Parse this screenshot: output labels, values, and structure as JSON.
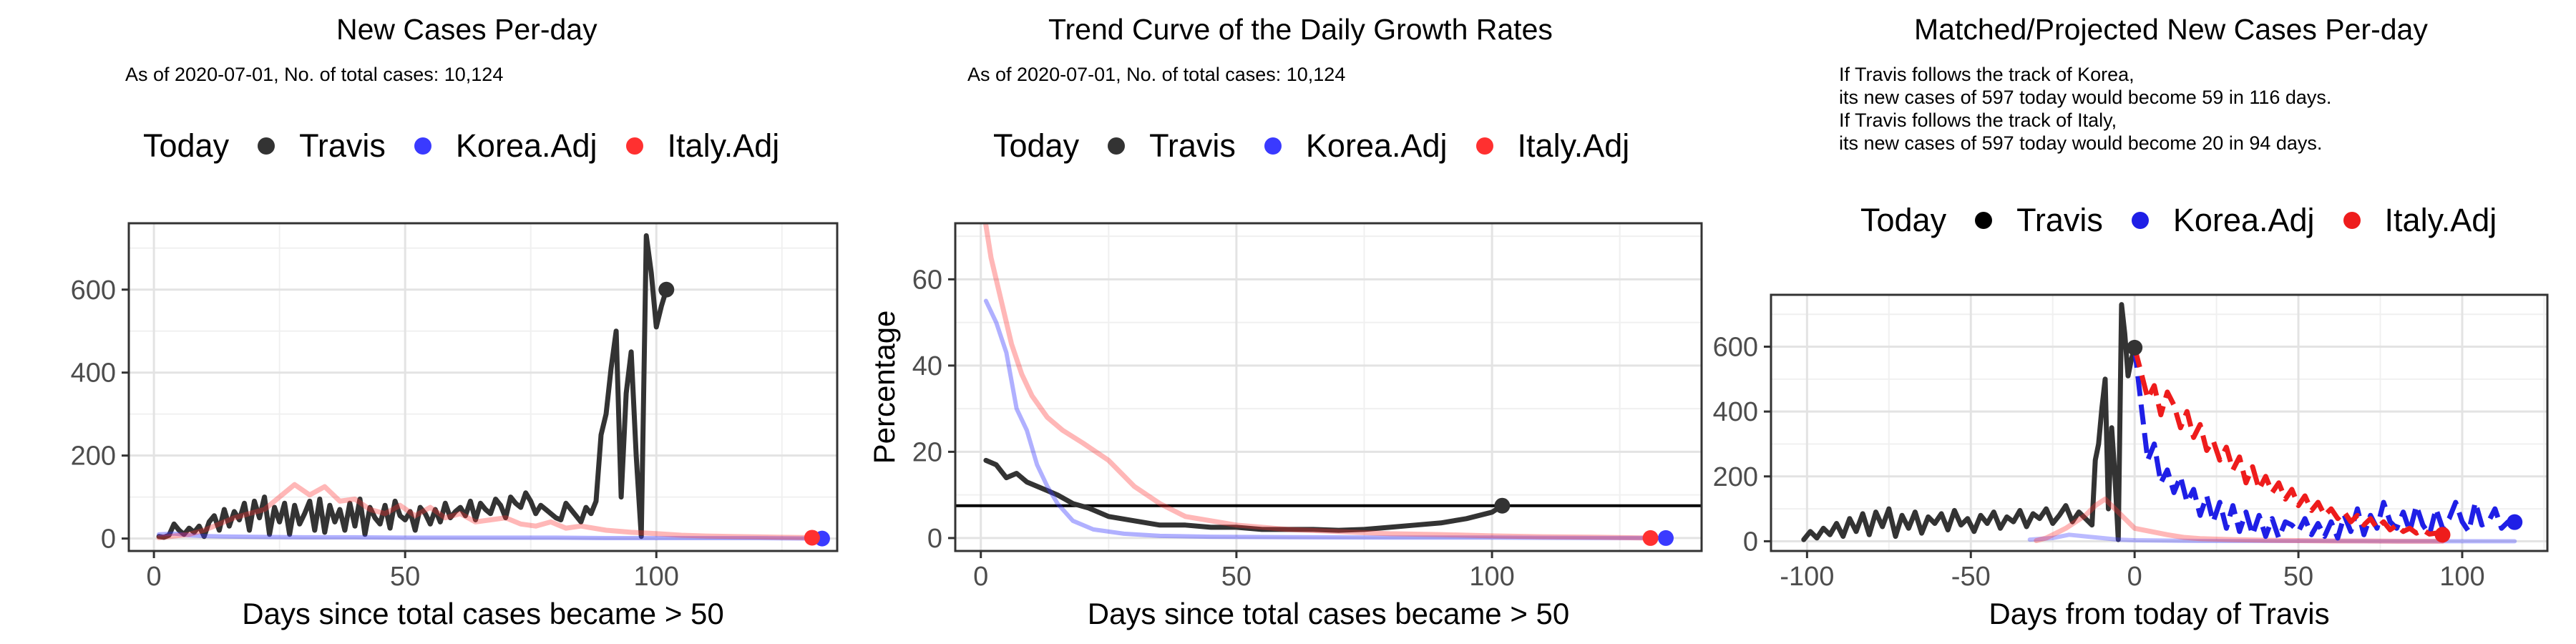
{
  "chart_data": [
    {
      "type": "line",
      "title": "New Cases Per-day",
      "subtitle": [
        "As of 2020-07-01, No. of total cases: 10,124"
      ],
      "xlabel": "Days since total cases became > 50",
      "ylabel": "",
      "xlim": [
        -5,
        136
      ],
      "ylim": [
        -30,
        760
      ],
      "xticks": [
        0,
        50,
        100
      ],
      "yticks": [
        0,
        200,
        400,
        600
      ],
      "grid": true,
      "legend": {
        "position": "top",
        "title": "Today",
        "entries": [
          "Travis",
          "Korea.Adj",
          "Italy.Adj"
        ]
      },
      "series": [
        {
          "name": "Travis",
          "color": "#333333",
          "alpha": 1,
          "width": 7,
          "x": [
            1,
            2,
            3,
            4,
            5,
            6,
            7,
            8,
            9,
            10,
            11,
            12,
            13,
            14,
            15,
            16,
            17,
            18,
            19,
            20,
            21,
            22,
            23,
            24,
            25,
            26,
            27,
            28,
            29,
            30,
            31,
            32,
            33,
            34,
            35,
            36,
            37,
            38,
            39,
            40,
            41,
            42,
            43,
            44,
            45,
            46,
            47,
            48,
            49,
            50,
            51,
            52,
            53,
            54,
            55,
            56,
            57,
            58,
            59,
            60,
            61,
            62,
            63,
            64,
            65,
            66,
            67,
            68,
            69,
            70,
            71,
            72,
            73,
            74,
            75,
            76,
            77,
            78,
            79,
            80,
            81,
            82,
            83,
            84,
            85,
            86,
            87,
            88,
            89,
            90,
            91,
            92,
            93,
            94,
            95,
            96,
            97,
            98,
            99,
            100,
            101,
            102
          ],
          "y": [
            5,
            3,
            8,
            35,
            20,
            10,
            25,
            15,
            30,
            5,
            40,
            55,
            20,
            70,
            30,
            65,
            45,
            85,
            20,
            90,
            50,
            100,
            10,
            75,
            40,
            85,
            10,
            80,
            35,
            60,
            90,
            20,
            95,
            15,
            80,
            40,
            70,
            20,
            85,
            30,
            95,
            10,
            75,
            50,
            35,
            80,
            25,
            90,
            55,
            45,
            65,
            20,
            75,
            60,
            35,
            70,
            40,
            85,
            50,
            65,
            75,
            55,
            90,
            45,
            85,
            70,
            60,
            95,
            80,
            50,
            100,
            85,
            75,
            110,
            90,
            60,
            80,
            70,
            60,
            50,
            45,
            85,
            70,
            55,
            40,
            75,
            60,
            90,
            250,
            300,
            410,
            500,
            100,
            350,
            450,
            200,
            5,
            730,
            640,
            510,
            560,
            600
          ],
          "end_marker": true
        },
        {
          "name": "Korea.Adj",
          "color": "#3a3aff",
          "alpha": 0.4,
          "width": 6,
          "x": [
            1,
            4,
            7,
            10,
            14,
            20,
            30,
            40,
            50,
            60,
            70,
            80,
            90,
            100,
            110,
            120,
            133
          ],
          "y": [
            10,
            12,
            8,
            6,
            5,
            4,
            3,
            3,
            2,
            2,
            2,
            2,
            1,
            1,
            1,
            1,
            0
          ],
          "end_marker": true
        },
        {
          "name": "Italy.Adj",
          "color": "#ff3030",
          "alpha": 0.35,
          "width": 7,
          "x": [
            1,
            4,
            7,
            10,
            13,
            16,
            19,
            22,
            25,
            28,
            31,
            34,
            37,
            40,
            43,
            46,
            49,
            52,
            55,
            58,
            61,
            64,
            67,
            70,
            73,
            76,
            79,
            82,
            85,
            90,
            95,
            100,
            105,
            110,
            115,
            120,
            125,
            131
          ],
          "y": [
            2,
            6,
            10,
            20,
            35,
            50,
            60,
            70,
            100,
            130,
            105,
            125,
            90,
            95,
            70,
            60,
            80,
            55,
            75,
            50,
            60,
            40,
            45,
            50,
            35,
            30,
            40,
            25,
            30,
            20,
            15,
            12,
            8,
            6,
            5,
            4,
            3,
            2
          ],
          "end_marker": true
        }
      ]
    },
    {
      "type": "line",
      "title": "Trend Curve of the Daily Growth Rates",
      "subtitle": [
        "As of 2020-07-01, No. of total cases: 10,124"
      ],
      "xlabel": "Days since total cases became > 50",
      "ylabel": "Percentage",
      "xlim": [
        -5,
        141
      ],
      "ylim": [
        -3,
        73
      ],
      "xticks": [
        0,
        50,
        100
      ],
      "yticks": [
        0,
        20,
        40,
        60
      ],
      "grid": true,
      "hline": 7.5,
      "legend": {
        "position": "top",
        "title": "Today",
        "entries": [
          "Travis",
          "Korea.Adj",
          "Italy.Adj"
        ]
      },
      "series": [
        {
          "name": "Travis",
          "color": "#333333",
          "alpha": 1,
          "width": 7,
          "x": [
            1,
            3,
            5,
            7,
            9,
            11,
            13,
            15,
            18,
            21,
            25,
            30,
            35,
            40,
            45,
            50,
            55,
            60,
            65,
            70,
            75,
            80,
            85,
            90,
            95,
            100,
            102
          ],
          "y": [
            18,
            17,
            14,
            15,
            13,
            12,
            11,
            10,
            8,
            7,
            5,
            4,
            3,
            3,
            2.5,
            2.5,
            2,
            2,
            2,
            1.8,
            2,
            2.5,
            3,
            3.5,
            4.5,
            6,
            7.5
          ],
          "end_marker": true
        },
        {
          "name": "Korea.Adj",
          "color": "#3a3aff",
          "alpha": 0.4,
          "width": 6,
          "x": [
            1,
            3,
            5,
            7,
            9,
            11,
            13,
            15,
            18,
            22,
            28,
            35,
            45,
            60,
            80,
            100,
            120,
            134
          ],
          "y": [
            55,
            50,
            43,
            30,
            25,
            17,
            12,
            8,
            4,
            2,
            1,
            0.5,
            0.3,
            0.2,
            0.1,
            0.1,
            0,
            0
          ],
          "end_marker": true
        },
        {
          "name": "Italy.Adj",
          "color": "#ff3030",
          "alpha": 0.35,
          "width": 7,
          "x": [
            0,
            2,
            4,
            6,
            8,
            10,
            13,
            16,
            20,
            25,
            30,
            35,
            40,
            45,
            50,
            60,
            70,
            80,
            90,
            100,
            110,
            120,
            131
          ],
          "y": [
            80,
            65,
            55,
            45,
            38,
            33,
            28,
            25,
            22,
            18,
            12,
            8,
            5,
            4,
            3,
            2,
            1.5,
            1,
            0.8,
            0.5,
            0.3,
            0.2,
            0
          ],
          "end_marker": true
        }
      ]
    },
    {
      "type": "line",
      "title": "Matched/Projected New Cases Per-day",
      "subtitle": [
        "If Travis follows the track of Korea,",
        "its new cases of 597 today would become 59 in 116 days.",
        "If Travis follows the track of Italy,",
        "its new cases of 597 today would become 20 in 94 days."
      ],
      "xlabel": "Days from today of Travis",
      "ylabel": "",
      "xlim": [
        -111,
        126
      ],
      "ylim": [
        -30,
        760
      ],
      "xticks": [
        -100,
        -50,
        0,
        50,
        100
      ],
      "yticks": [
        0,
        200,
        400,
        600
      ],
      "grid": true,
      "legend": {
        "position": "top",
        "title": "Today",
        "entries": [
          "Travis",
          "Korea.Adj",
          "Italy.Adj"
        ]
      },
      "series": [
        {
          "name": "Travis",
          "color": "#333333",
          "alpha": 1,
          "width": 7,
          "x": [
            -101,
            -99,
            -97,
            -95,
            -93,
            -91,
            -89,
            -87,
            -85,
            -83,
            -81,
            -79,
            -77,
            -75,
            -73,
            -71,
            -69,
            -67,
            -65,
            -63,
            -61,
            -59,
            -57,
            -55,
            -53,
            -51,
            -49,
            -47,
            -45,
            -43,
            -41,
            -39,
            -37,
            -35,
            -33,
            -31,
            -29,
            -27,
            -25,
            -23,
            -21,
            -19,
            -17,
            -15,
            -13,
            -12,
            -11,
            -10,
            -9,
            -8,
            -7,
            -6,
            -5,
            -4,
            -3,
            -2,
            -1,
            0
          ],
          "y": [
            5,
            30,
            10,
            40,
            20,
            55,
            15,
            70,
            30,
            85,
            20,
            90,
            45,
            100,
            15,
            80,
            40,
            90,
            25,
            75,
            55,
            85,
            35,
            95,
            50,
            70,
            30,
            80,
            55,
            90,
            40,
            75,
            60,
            95,
            45,
            85,
            70,
            100,
            55,
            80,
            110,
            60,
            90,
            70,
            50,
            250,
            300,
            410,
            500,
            100,
            350,
            200,
            5,
            730,
            640,
            510,
            560,
            597
          ],
          "end_marker": true
        },
        {
          "name": "Korea.Adj",
          "color": "#3a3aff",
          "alpha": 0.35,
          "width": 6,
          "x": [
            -32,
            -25,
            -20,
            -15,
            -10,
            -5,
            0,
            10,
            20,
            40,
            60,
            80,
            100,
            116
          ],
          "y": [
            5,
            10,
            20,
            15,
            10,
            5,
            3,
            2,
            1,
            1,
            1,
            0,
            0,
            0
          ],
          "end_marker": false
        },
        {
          "name": "Italy.Adj",
          "color": "#ff3030",
          "alpha": 0.35,
          "width": 7,
          "x": [
            -30,
            -27,
            -24,
            -21,
            -18,
            -15,
            -12,
            -9,
            -6,
            -3,
            0,
            5,
            10,
            15,
            20,
            30,
            40,
            50,
            60,
            70,
            80,
            90,
            94
          ],
          "y": [
            2,
            10,
            25,
            40,
            60,
            80,
            110,
            130,
            100,
            70,
            40,
            30,
            20,
            12,
            8,
            5,
            3,
            2,
            1,
            1,
            0,
            0,
            0
          ],
          "end_marker": false
        },
        {
          "name": "Korea.Adj",
          "color": "#1f1fe6",
          "alpha": 1,
          "width": 7,
          "dash": "28,12",
          "x": [
            0,
            2,
            4,
            6,
            8,
            10,
            12,
            14,
            16,
            18,
            20,
            22,
            24,
            26,
            28,
            30,
            32,
            34,
            36,
            38,
            40,
            42,
            44,
            46,
            48,
            50,
            52,
            54,
            56,
            58,
            60,
            62,
            64,
            66,
            68,
            70,
            72,
            74,
            76,
            78,
            80,
            82,
            84,
            86,
            88,
            90,
            92,
            94,
            96,
            98,
            100,
            102,
            104,
            106,
            108,
            110,
            112,
            114,
            116
          ],
          "y": [
            597,
            420,
            250,
            300,
            180,
            220,
            150,
            200,
            120,
            160,
            80,
            140,
            60,
            120,
            40,
            110,
            30,
            90,
            20,
            80,
            15,
            70,
            10,
            60,
            50,
            30,
            70,
            20,
            55,
            15,
            60,
            10,
            80,
            30,
            100,
            20,
            80,
            40,
            120,
            60,
            40,
            90,
            30,
            110,
            50,
            20,
            100,
            40,
            70,
            120,
            60,
            30,
            120,
            50,
            60,
            100,
            40,
            60,
            59
          ],
          "end_marker": true
        },
        {
          "name": "Italy.Adj",
          "color": "#ee1c1c",
          "alpha": 1,
          "width": 7,
          "dash": "28,12",
          "x": [
            0,
            2,
            4,
            6,
            8,
            10,
            12,
            14,
            16,
            18,
            20,
            22,
            24,
            26,
            28,
            30,
            32,
            34,
            36,
            38,
            40,
            42,
            44,
            46,
            48,
            50,
            52,
            54,
            56,
            58,
            60,
            62,
            64,
            66,
            68,
            70,
            72,
            74,
            76,
            78,
            80,
            82,
            84,
            86,
            88,
            90,
            92,
            94
          ],
          "y": [
            597,
            520,
            440,
            480,
            390,
            460,
            420,
            350,
            400,
            320,
            360,
            280,
            310,
            250,
            290,
            220,
            260,
            180,
            230,
            160,
            200,
            150,
            180,
            130,
            160,
            110,
            140,
            95,
            120,
            80,
            100,
            70,
            90,
            60,
            80,
            50,
            70,
            40,
            60,
            35,
            50,
            30,
            40,
            25,
            35,
            22,
            25,
            20
          ],
          "end_marker": true
        }
      ]
    }
  ]
}
